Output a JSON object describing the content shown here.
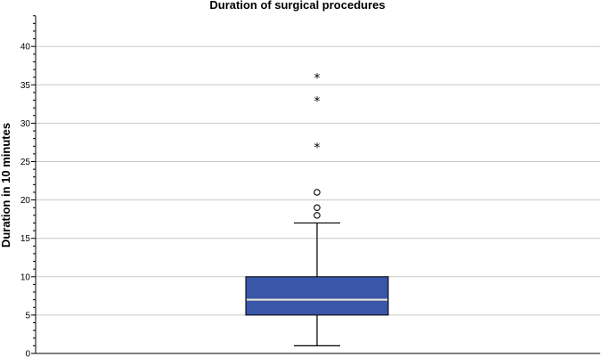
{
  "chart_data": {
    "type": "boxplot",
    "title": "Duration of surgical procedures",
    "xlabel": "",
    "ylabel": "Duration in 10 minutes",
    "ylim": [
      0,
      44
    ],
    "yticks": [
      0,
      5,
      10,
      15,
      20,
      25,
      30,
      35,
      40
    ],
    "grid": true,
    "box": {
      "min": 1,
      "q1": 5,
      "median": 7,
      "q3": 10,
      "max": 17
    },
    "outliers": [
      18,
      19,
      21
    ],
    "extremes": [
      27,
      33,
      36
    ],
    "colors": {
      "box_fill": "#3a56a8",
      "median_line": "#e0e0d0",
      "grid": "#c8c8c8"
    }
  }
}
